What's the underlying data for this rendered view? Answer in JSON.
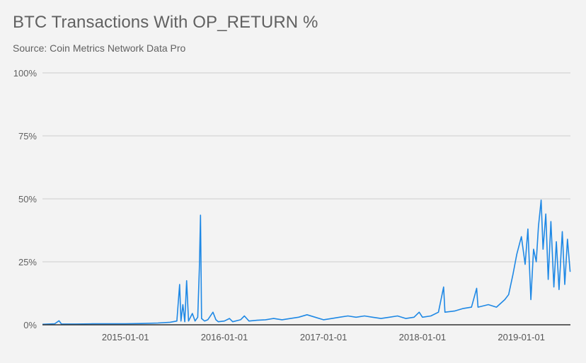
{
  "chart_data": {
    "type": "line",
    "title": "BTC Transactions With OP_RETURN %",
    "subtitle": "Source: Coin Metrics Network Data Pro",
    "xlabel": "",
    "ylabel": "",
    "x_range": [
      "2014-03-01",
      "2019-07-01"
    ],
    "ylim": [
      0,
      100
    ],
    "y_ticks": [
      {
        "value": 0,
        "label": "0%"
      },
      {
        "value": 25,
        "label": "25%"
      },
      {
        "value": 50,
        "label": "50%"
      },
      {
        "value": 75,
        "label": "75%"
      },
      {
        "value": 100,
        "label": "100%"
      }
    ],
    "x_ticks": [
      {
        "value": "2015-01-01",
        "label": "2015-01-01"
      },
      {
        "value": "2016-01-01",
        "label": "2016-01-01"
      },
      {
        "value": "2017-01-01",
        "label": "2017-01-01"
      },
      {
        "value": "2018-01-01",
        "label": "2018-01-01"
      },
      {
        "value": "2019-01-01",
        "label": "2019-01-01"
      }
    ],
    "grid": true,
    "legend": "none",
    "series": [
      {
        "color": "#1e88e5",
        "points": [
          [
            "2014-03-01",
            0.2
          ],
          [
            "2014-04-15",
            0.4
          ],
          [
            "2014-05-01",
            1.6
          ],
          [
            "2014-05-10",
            0.3
          ],
          [
            "2014-07-01",
            0.3
          ],
          [
            "2014-09-01",
            0.4
          ],
          [
            "2014-11-01",
            0.4
          ],
          [
            "2015-01-01",
            0.4
          ],
          [
            "2015-03-01",
            0.5
          ],
          [
            "2015-05-01",
            0.7
          ],
          [
            "2015-06-15",
            1.0
          ],
          [
            "2015-07-10",
            1.5
          ],
          [
            "2015-07-20",
            16.0
          ],
          [
            "2015-07-25",
            1.5
          ],
          [
            "2015-08-01",
            8.0
          ],
          [
            "2015-08-08",
            1.2
          ],
          [
            "2015-08-15",
            17.5
          ],
          [
            "2015-08-22",
            1.5
          ],
          [
            "2015-09-05",
            4.5
          ],
          [
            "2015-09-15",
            1.5
          ],
          [
            "2015-09-25",
            3.0
          ],
          [
            "2015-10-01",
            22.5
          ],
          [
            "2015-10-05",
            43.5
          ],
          [
            "2015-10-09",
            2.5
          ],
          [
            "2015-10-20",
            1.5
          ],
          [
            "2015-11-01",
            2.0
          ],
          [
            "2015-11-20",
            5.0
          ],
          [
            "2015-12-01",
            2.0
          ],
          [
            "2015-12-10",
            1.2
          ],
          [
            "2016-01-01",
            1.5
          ],
          [
            "2016-01-20",
            2.5
          ],
          [
            "2016-02-01",
            1.2
          ],
          [
            "2016-03-01",
            2.0
          ],
          [
            "2016-03-15",
            3.5
          ],
          [
            "2016-04-01",
            1.5
          ],
          [
            "2016-05-01",
            1.8
          ],
          [
            "2016-06-01",
            2.0
          ],
          [
            "2016-07-01",
            2.5
          ],
          [
            "2016-08-01",
            2.0
          ],
          [
            "2016-09-01",
            2.5
          ],
          [
            "2016-10-01",
            3.0
          ],
          [
            "2016-11-01",
            4.0
          ],
          [
            "2016-12-01",
            3.0
          ],
          [
            "2017-01-01",
            2.0
          ],
          [
            "2017-02-01",
            2.5
          ],
          [
            "2017-03-01",
            3.0
          ],
          [
            "2017-04-01",
            3.5
          ],
          [
            "2017-05-01",
            3.0
          ],
          [
            "2017-06-01",
            3.5
          ],
          [
            "2017-07-01",
            3.0
          ],
          [
            "2017-08-01",
            2.5
          ],
          [
            "2017-09-01",
            3.0
          ],
          [
            "2017-10-01",
            3.5
          ],
          [
            "2017-11-01",
            2.5
          ],
          [
            "2017-12-01",
            3.0
          ],
          [
            "2017-12-20",
            5.0
          ],
          [
            "2018-01-01",
            3.0
          ],
          [
            "2018-02-01",
            3.5
          ],
          [
            "2018-03-01",
            5.0
          ],
          [
            "2018-03-20",
            15.0
          ],
          [
            "2018-03-25",
            5.0
          ],
          [
            "2018-05-01",
            5.5
          ],
          [
            "2018-06-01",
            6.5
          ],
          [
            "2018-07-01",
            7.0
          ],
          [
            "2018-07-20",
            14.5
          ],
          [
            "2018-07-25",
            7.0
          ],
          [
            "2018-09-01",
            8.0
          ],
          [
            "2018-10-01",
            7.0
          ],
          [
            "2018-11-01",
            10.0
          ],
          [
            "2018-11-15",
            12.0
          ],
          [
            "2018-12-01",
            20.0
          ],
          [
            "2018-12-15",
            28.0
          ],
          [
            "2019-01-01",
            35.0
          ],
          [
            "2019-01-15",
            24.0
          ],
          [
            "2019-01-25",
            38.0
          ],
          [
            "2019-02-05",
            10.0
          ],
          [
            "2019-02-15",
            30.0
          ],
          [
            "2019-02-25",
            25.0
          ],
          [
            "2019-03-05",
            39.0
          ],
          [
            "2019-03-15",
            49.5
          ],
          [
            "2019-03-22",
            30.0
          ],
          [
            "2019-04-01",
            44.0
          ],
          [
            "2019-04-10",
            18.0
          ],
          [
            "2019-04-20",
            41.0
          ],
          [
            "2019-05-01",
            15.0
          ],
          [
            "2019-05-10",
            33.0
          ],
          [
            "2019-05-20",
            14.0
          ],
          [
            "2019-06-01",
            37.0
          ],
          [
            "2019-06-10",
            16.0
          ],
          [
            "2019-06-20",
            34.0
          ],
          [
            "2019-06-30",
            21.0
          ]
        ]
      }
    ]
  }
}
